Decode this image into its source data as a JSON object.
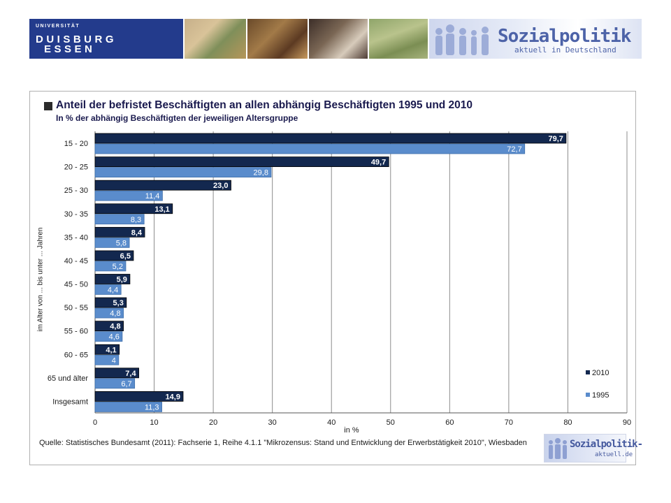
{
  "header": {
    "university_line1": "UNIVERSITÄT",
    "university_line2": "DUISBURG",
    "university_line3": "ESSEN",
    "brand_title": "Sozialpolitik",
    "brand_subtitle": "aktuell in Deutschland"
  },
  "footer": {
    "source": "Quelle: Statistisches Bundesamt  (2011):  Fachserie 1, Reihe 4.1.1 \"Mikrozensus: Stand und Entwicklung der Erwerbstätigkeit 2010\", Wiesbaden",
    "logo_title": "Sozialpolitik-",
    "logo_sub": "aktuell.de"
  },
  "colors": {
    "series_2010": "#13284f",
    "series_1995": "#5a8ccc",
    "grid": "#8c8c8c"
  },
  "chart_data": {
    "type": "bar",
    "orientation": "horizontal",
    "title": "Anteil der befristet Beschäftigten an allen abhängig Beschäftigten 1995 und 2010",
    "subtitle": "In % der abhängig Beschäftigten der jeweiligen Altersgruppe",
    "xlabel": "in %",
    "ylabel": "im Alter von ... bis unter ... Jahren",
    "xlim": [
      0,
      90
    ],
    "xticks": [
      0,
      10,
      20,
      30,
      40,
      50,
      60,
      70,
      80,
      90
    ],
    "grid": true,
    "legend_position": "bottom-right",
    "categories": [
      "15 - 20",
      "20 - 25",
      "25 - 30",
      "30 - 35",
      "35 - 40",
      "40 - 45",
      "45 - 50",
      "50 - 55",
      "55 - 60",
      "60 - 65",
      "65 und älter",
      "Insgesamt"
    ],
    "series": [
      {
        "name": "2010",
        "values": [
          79.7,
          49.7,
          23.0,
          13.1,
          8.4,
          6.5,
          5.9,
          5.3,
          4.8,
          4.1,
          7.4,
          14.9
        ],
        "labels": [
          "79,7",
          "49,7",
          "23,0",
          "13,1",
          "8,4",
          "6,5",
          "5,9",
          "5,3",
          "4,8",
          "4,1",
          "7,4",
          "14,9"
        ]
      },
      {
        "name": "1995",
        "values": [
          72.7,
          29.8,
          11.4,
          8.3,
          5.8,
          5.2,
          4.4,
          4.8,
          4.6,
          4.0,
          6.7,
          11.3
        ],
        "labels": [
          "72,7",
          "29,8",
          "11,4",
          "8,3",
          "5,8",
          "5,2",
          "4,4",
          "4,8",
          "4,6",
          "4",
          "6,7",
          "11,3"
        ]
      }
    ]
  }
}
